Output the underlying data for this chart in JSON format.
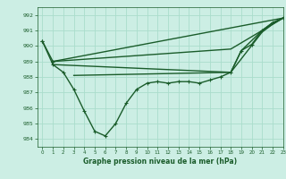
{
  "bg_color": "#cceee4",
  "grid_color": "#aaddcc",
  "line_color": "#1a5c2a",
  "title": "Graphe pression niveau de la mer (hPa)",
  "xlim": [
    -0.5,
    23
  ],
  "ylim": [
    983.5,
    992.5
  ],
  "yticks": [
    984,
    985,
    986,
    987,
    988,
    989,
    990,
    991,
    992
  ],
  "xticks": [
    0,
    1,
    2,
    3,
    4,
    5,
    6,
    7,
    8,
    9,
    10,
    11,
    12,
    13,
    14,
    15,
    16,
    17,
    18,
    19,
    20,
    21,
    22,
    23
  ],
  "series": [
    {
      "x": [
        0,
        1
      ],
      "y": [
        990.3,
        989.0
      ],
      "marker": true,
      "lw": 1.0
    },
    {
      "x": [
        0,
        1,
        2,
        3,
        4,
        5,
        6,
        7,
        8,
        9,
        10,
        11,
        12,
        13,
        14,
        15,
        16,
        17,
        18,
        19,
        20,
        21,
        22,
        23
      ],
      "y": [
        990.3,
        988.8,
        988.3,
        987.2,
        985.8,
        984.5,
        984.2,
        985.0,
        986.3,
        987.2,
        987.6,
        987.7,
        987.6,
        987.7,
        987.7,
        987.6,
        987.8,
        988.0,
        988.3,
        989.7,
        990.1,
        991.0,
        991.5,
        991.8
      ],
      "marker": true,
      "lw": 1.0
    },
    {
      "x": [
        1,
        23
      ],
      "y": [
        989.0,
        991.8
      ],
      "marker": false,
      "lw": 1.0
    },
    {
      "x": [
        1,
        18,
        21,
        23
      ],
      "y": [
        989.0,
        989.8,
        991.0,
        991.8
      ],
      "marker": false,
      "lw": 1.0
    },
    {
      "x": [
        1,
        18,
        19,
        21,
        22,
        23
      ],
      "y": [
        988.8,
        988.3,
        989.7,
        991.0,
        991.5,
        991.8
      ],
      "marker": false,
      "lw": 1.0
    },
    {
      "x": [
        3,
        18,
        21,
        22,
        23
      ],
      "y": [
        988.1,
        988.3,
        990.9,
        991.4,
        991.8
      ],
      "marker": false,
      "lw": 1.0
    }
  ]
}
